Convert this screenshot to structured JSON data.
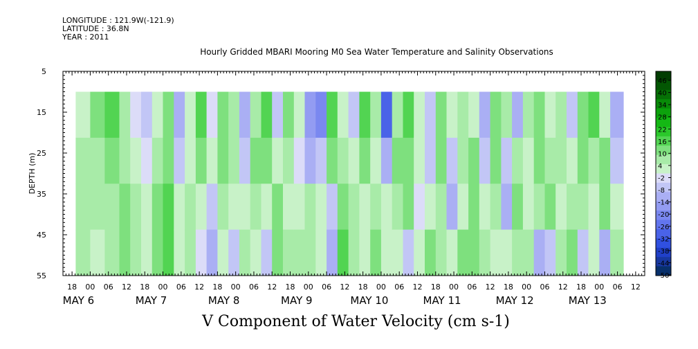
{
  "meta": {
    "longitude": "LONGITUDE : 121.9W(-121.9)",
    "latitude": "LATITUDE : 36.8N",
    "year": "YEAR : 2011"
  },
  "chart_data": {
    "type": "heatmap",
    "title": "Hourly Gridded MBARI Mooring M0 Sea Water Temperature and Salinity Observations",
    "xlabel": "",
    "ylabel": "DEPTH (m)",
    "caption": "V Component of Water Velocity (cm s-1)",
    "ylim": [
      5,
      55
    ],
    "y_inverted": true,
    "y_ticks": [
      "5",
      "15",
      "25",
      "35",
      "45",
      "55"
    ],
    "hour_ticks": [
      "18",
      "00",
      "06",
      "12",
      "18",
      "00",
      "06",
      "12",
      "18",
      "00",
      "06",
      "12",
      "18",
      "00",
      "06",
      "12",
      "18",
      "00",
      "06",
      "12",
      "18",
      "00",
      "06",
      "12",
      "18",
      "00",
      "06",
      "12",
      "18",
      "00",
      "06",
      "12"
    ],
    "day_labels": [
      "MAY 6",
      "MAY 7",
      "MAY 8",
      "MAY 9",
      "MAY 10",
      "MAY 11",
      "MAY 12",
      "MAY 13"
    ],
    "data_depth_range": [
      10,
      55
    ],
    "colorbar": {
      "labels": [
        "46",
        "40",
        "34",
        "28",
        "22",
        "16",
        "10",
        "4",
        "-2",
        "-8",
        "-14",
        "-20",
        "-26",
        "-32",
        "-38",
        "-44",
        "-50"
      ],
      "range": [
        -50,
        50
      ],
      "colors": [
        "#08306b",
        "#1838a0",
        "#2040c8",
        "#3050e0",
        "#4a63e8",
        "#6275ee",
        "#7a88f0",
        "#939cf2",
        "#aaaff4",
        "#c2c6f6",
        "#dcdcf8",
        "#c8f2c8",
        "#a8eba8",
        "#7ee07e",
        "#52d452",
        "#2bc82b",
        "#14b814",
        "#0ca20c",
        "#088a08",
        "#067006",
        "#035603",
        "#023d02"
      ]
    },
    "columns": [
      {
        "start_day": 5.8,
        "values": [
          4,
          6,
          8,
          6
        ]
      },
      {
        "start_day": 6.0,
        "values": [
          10,
          8,
          6,
          4
        ]
      },
      {
        "start_day": 6.2,
        "values": [
          14,
          10,
          8,
          6
        ]
      },
      {
        "start_day": 6.4,
        "values": [
          6,
          8,
          10,
          12
        ]
      },
      {
        "start_day": 6.55,
        "values": [
          -4,
          2,
          6,
          8
        ]
      },
      {
        "start_day": 6.7,
        "values": [
          -8,
          -4,
          2,
          4
        ]
      },
      {
        "start_day": 6.85,
        "values": [
          4,
          6,
          10,
          12
        ]
      },
      {
        "start_day": 7.0,
        "values": [
          10,
          12,
          14,
          16
        ]
      },
      {
        "start_day": 7.15,
        "values": [
          -10,
          -6,
          2,
          4
        ]
      },
      {
        "start_day": 7.3,
        "values": [
          4,
          2,
          6,
          8
        ]
      },
      {
        "start_day": 7.45,
        "values": [
          14,
          12,
          2,
          -4
        ]
      },
      {
        "start_day": 7.6,
        "values": [
          -2,
          4,
          -6,
          -10
        ]
      },
      {
        "start_day": 7.75,
        "values": [
          12,
          10,
          6,
          4
        ]
      },
      {
        "start_day": 7.9,
        "values": [
          6,
          8,
          4,
          -8
        ]
      },
      {
        "start_day": 8.05,
        "values": [
          -12,
          -6,
          2,
          6
        ]
      },
      {
        "start_day": 8.2,
        "values": [
          8,
          12,
          6,
          2
        ]
      },
      {
        "start_day": 8.35,
        "values": [
          14,
          10,
          4,
          -8
        ]
      },
      {
        "start_day": 8.5,
        "values": [
          -6,
          2,
          10,
          12
        ]
      },
      {
        "start_day": 8.65,
        "values": [
          12,
          6,
          4,
          8
        ]
      },
      {
        "start_day": 8.8,
        "values": [
          4,
          -4,
          2,
          6
        ]
      },
      {
        "start_day": 8.95,
        "values": [
          -14,
          -10,
          6,
          8
        ]
      },
      {
        "start_day": 9.1,
        "values": [
          -20,
          -8,
          2,
          4
        ]
      },
      {
        "start_day": 9.25,
        "values": [
          14,
          10,
          -6,
          -10
        ]
      },
      {
        "start_day": 9.4,
        "values": [
          2,
          8,
          12,
          14
        ]
      },
      {
        "start_day": 9.55,
        "values": [
          -8,
          2,
          6,
          8
        ]
      },
      {
        "start_day": 9.7,
        "values": [
          16,
          12,
          4,
          2
        ]
      },
      {
        "start_day": 9.85,
        "values": [
          6,
          4,
          8,
          10
        ]
      },
      {
        "start_day": 10.0,
        "values": [
          -30,
          -10,
          2,
          4
        ]
      },
      {
        "start_day": 10.15,
        "values": [
          8,
          10,
          6,
          4
        ]
      },
      {
        "start_day": 10.3,
        "values": [
          14,
          12,
          10,
          -8
        ]
      },
      {
        "start_day": 10.45,
        "values": [
          4,
          2,
          -2,
          4
        ]
      },
      {
        "start_day": 10.6,
        "values": [
          -8,
          -6,
          2,
          10
        ]
      },
      {
        "start_day": 10.75,
        "values": [
          12,
          10,
          8,
          6
        ]
      },
      {
        "start_day": 10.9,
        "values": [
          4,
          -6,
          -10,
          2
        ]
      },
      {
        "start_day": 11.05,
        "values": [
          8,
          6,
          4,
          12
        ]
      },
      {
        "start_day": 11.2,
        "values": [
          2,
          10,
          12,
          10
        ]
      },
      {
        "start_day": 11.35,
        "values": [
          -10,
          -6,
          4,
          8
        ]
      },
      {
        "start_day": 11.5,
        "values": [
          12,
          10,
          6,
          2
        ]
      },
      {
        "start_day": 11.65,
        "values": [
          6,
          -8,
          -12,
          4
        ]
      },
      {
        "start_day": 11.8,
        "values": [
          -12,
          8,
          10,
          6
        ]
      },
      {
        "start_day": 11.95,
        "values": [
          6,
          4,
          2,
          8
        ]
      },
      {
        "start_day": 12.1,
        "values": [
          10,
          12,
          8,
          -10
        ]
      },
      {
        "start_day": 12.25,
        "values": [
          4,
          6,
          10,
          -8
        ]
      },
      {
        "start_day": 12.4,
        "values": [
          8,
          6,
          4,
          6
        ]
      },
      {
        "start_day": 12.55,
        "values": [
          -8,
          2,
          8,
          10
        ]
      },
      {
        "start_day": 12.7,
        "values": [
          12,
          10,
          6,
          -6
        ]
      },
      {
        "start_day": 12.85,
        "values": [
          14,
          8,
          4,
          2
        ]
      },
      {
        "start_day": 13.0,
        "values": [
          4,
          10,
          12,
          -10
        ]
      },
      {
        "start_day": 13.15,
        "values": [
          -10,
          -8,
          4,
          6
        ]
      }
    ],
    "data_end_day": 13.33
  }
}
